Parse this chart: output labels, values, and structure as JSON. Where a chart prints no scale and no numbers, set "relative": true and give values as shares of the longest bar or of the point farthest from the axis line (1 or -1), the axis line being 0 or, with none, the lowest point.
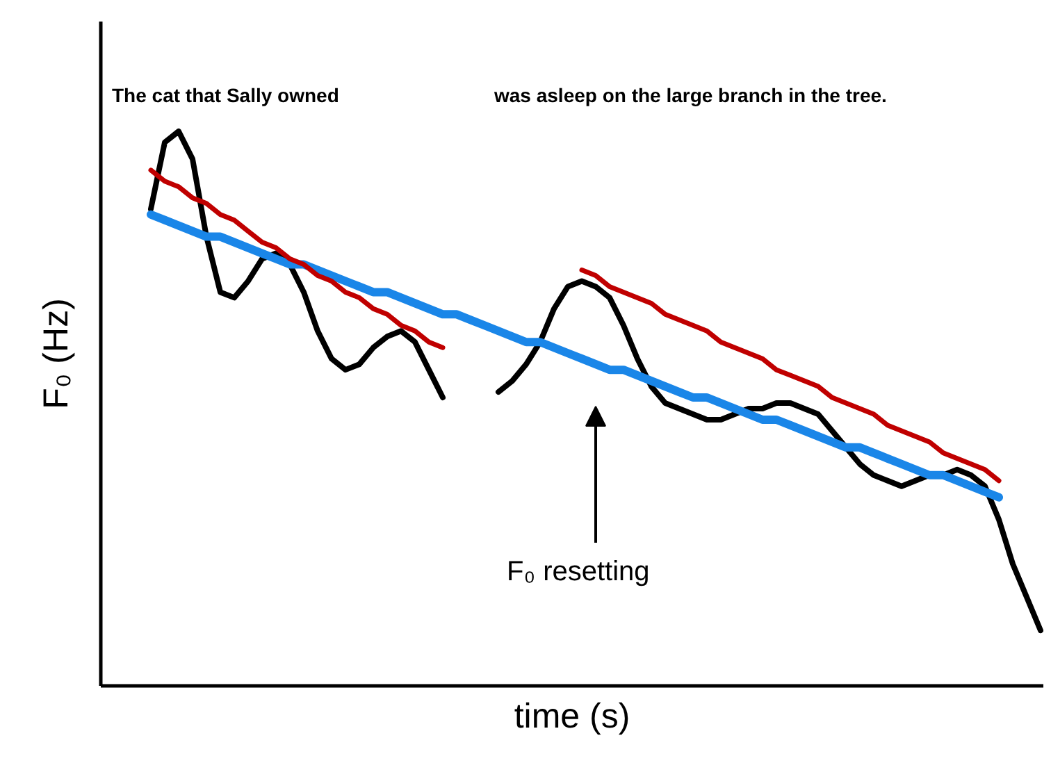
{
  "chart_data": {
    "type": "line",
    "relative": true,
    "tick_labels": false,
    "xlabel": "time (s)",
    "ylabel": "F₀ (Hz)",
    "annotations": [
      "The cat that Sally owned",
      "was asleep on the large branch in the tree.",
      "F₀ resetting"
    ],
    "categories": [
      null,
      null,
      null,
      null,
      null,
      null,
      null,
      null,
      null,
      null,
      null,
      null,
      null,
      null,
      null,
      null,
      null,
      null,
      null,
      null,
      null,
      null,
      null,
      null,
      null,
      null,
      null,
      null,
      null,
      null,
      null,
      null,
      null,
      null,
      null,
      null,
      null,
      null,
      null,
      null,
      null,
      null,
      null,
      null,
      null,
      null,
      null,
      null,
      null,
      null,
      null,
      null,
      null,
      null,
      null,
      null,
      null,
      null,
      null,
      null,
      null,
      null,
      null,
      null,
      null
    ],
    "series": [
      {
        "color": "#000000",
        "values": [
          0.86,
          0.98,
          1.0,
          0.95,
          0.81,
          0.71,
          0.7,
          0.73,
          0.77,
          0.78,
          0.76,
          0.71,
          0.64,
          0.59,
          0.57,
          0.58,
          0.61,
          0.63,
          0.64,
          0.62,
          0.57,
          0.52,
          null,
          null,
          null,
          0.53,
          0.55,
          0.58,
          0.62,
          0.68,
          0.72,
          0.73,
          0.72,
          0.7,
          0.65,
          0.59,
          0.54,
          0.51,
          0.5,
          0.49,
          0.48,
          0.48,
          0.49,
          0.5,
          0.5,
          0.51,
          0.51,
          0.5,
          0.49,
          0.46,
          0.43,
          0.4,
          0.38,
          0.37,
          0.36,
          0.37,
          0.38,
          0.38,
          0.39,
          0.38,
          0.36,
          0.3,
          0.22,
          0.16,
          0.1
        ]
      },
      {
        "color": "#1a86e8",
        "values": [
          0.85,
          0.84,
          0.83,
          0.82,
          0.81,
          0.81,
          0.8,
          0.79,
          0.78,
          0.77,
          0.76,
          0.76,
          0.75,
          0.74,
          0.73,
          0.72,
          0.71,
          0.71,
          0.7,
          0.69,
          0.68,
          0.67,
          0.67,
          0.66,
          0.65,
          0.64,
          0.63,
          0.62,
          0.62,
          0.61,
          0.6,
          0.59,
          0.58,
          0.57,
          0.57,
          0.56,
          0.55,
          0.54,
          0.53,
          0.52,
          0.52,
          0.51,
          0.5,
          0.49,
          0.48,
          0.48,
          0.47,
          0.46,
          0.45,
          0.44,
          0.43,
          0.43,
          0.42,
          0.41,
          0.4,
          0.39,
          0.38,
          0.38,
          0.37,
          0.36,
          0.35,
          0.34,
          null,
          null,
          null
        ]
      },
      {
        "color": "#c00000",
        "values": [
          0.93,
          0.91,
          0.9,
          0.88,
          0.87,
          0.85,
          0.84,
          0.82,
          0.8,
          0.79,
          0.77,
          0.76,
          0.74,
          0.73,
          0.71,
          0.7,
          0.68,
          0.67,
          0.65,
          0.64,
          0.62,
          0.61,
          null,
          null,
          null,
          null,
          null,
          null,
          null,
          null,
          null,
          null,
          null,
          null,
          null,
          null,
          null,
          null,
          null,
          null,
          null,
          null,
          null,
          null,
          null,
          null,
          null,
          null,
          null,
          null,
          null,
          null,
          null,
          null,
          null,
          null,
          null,
          null,
          null,
          null,
          null,
          null,
          null,
          null,
          null
        ]
      },
      {
        "color": "#c00000",
        "values": [
          null,
          null,
          null,
          null,
          null,
          null,
          null,
          null,
          null,
          null,
          null,
          null,
          null,
          null,
          null,
          null,
          null,
          null,
          null,
          null,
          null,
          null,
          null,
          null,
          null,
          null,
          null,
          null,
          null,
          null,
          null,
          0.75,
          0.74,
          0.72,
          0.71,
          0.7,
          0.69,
          0.67,
          0.66,
          0.65,
          0.64,
          0.62,
          0.61,
          0.6,
          0.59,
          0.57,
          0.56,
          0.55,
          0.54,
          0.52,
          0.51,
          0.5,
          0.49,
          0.47,
          0.46,
          0.45,
          0.44,
          0.42,
          0.41,
          0.4,
          0.39,
          0.37,
          null,
          null,
          null
        ]
      }
    ]
  }
}
